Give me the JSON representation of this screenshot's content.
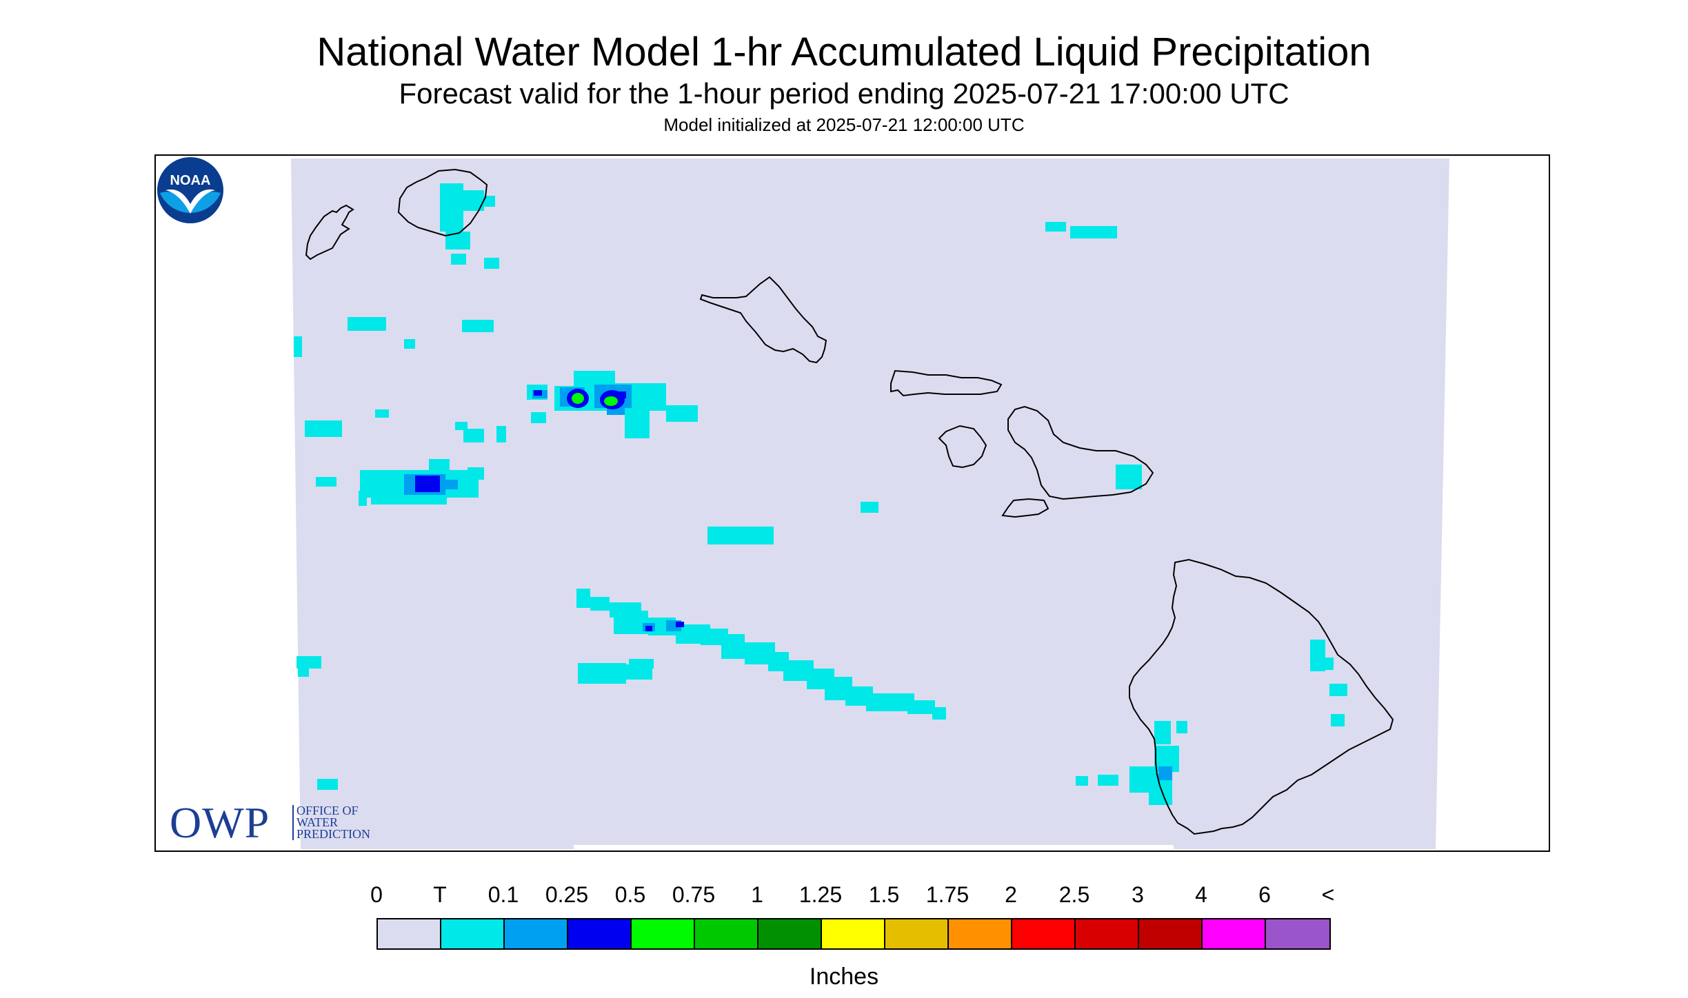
{
  "title": "National Water Model 1-hr Accumulated Liquid Precipitation",
  "subtitle": "Forecast valid for the 1-hour period ending 2025-07-21 17:00:00 UTC",
  "init_line": "Model initialized at 2025-07-21 12:00:00 UTC",
  "owp_logo": {
    "acronym": "OWP",
    "line1": "OFFICE OF",
    "line2": "WATER",
    "line3": "PREDICTION"
  },
  "noaa_logo": {
    "text": "NOAA"
  },
  "legend": {
    "labels": [
      "0",
      "T",
      "0.1",
      "0.25",
      "0.5",
      "0.75",
      "1",
      "1.25",
      "1.5",
      "1.75",
      "2",
      "2.5",
      "3",
      "4",
      "6",
      "<"
    ],
    "colors": [
      "#dcdcf0",
      "#00e8e8",
      "#00a0f0",
      "#0000f0",
      "#00fa00",
      "#00c800",
      "#009000",
      "#ffff00",
      "#e6be00",
      "#ff9000",
      "#ff0000",
      "#d80000",
      "#c00000",
      "#ff00ff",
      "#9955c9"
    ],
    "units": "Inches"
  },
  "colors": {
    "background": "#dcdcf0",
    "trace": "#00e8e8",
    "light": "#00a0f0",
    "medium": "#0000f0",
    "heavy": "#00c800",
    "coast": "#000000"
  }
}
